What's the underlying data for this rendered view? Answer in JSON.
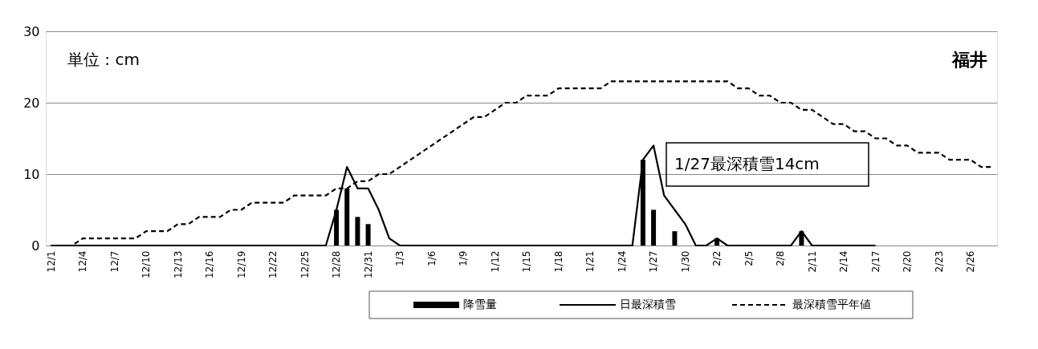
{
  "chart_data": {
    "type": "bar",
    "title": "福井",
    "annotations": [
      "単位 : cm",
      "1/27最深積雪14cm"
    ],
    "categories": [
      "12/1",
      null,
      null,
      "12/4",
      null,
      null,
      "12/7",
      null,
      null,
      "12/10",
      null,
      null,
      "12/13",
      null,
      null,
      "12/16",
      null,
      null,
      "12/19",
      null,
      null,
      "12/22",
      null,
      null,
      "12/25",
      null,
      null,
      "12/28",
      null,
      null,
      "12/31",
      null,
      null,
      "1/3",
      null,
      null,
      "1/6",
      null,
      null,
      "1/9",
      null,
      null,
      "1/12",
      null,
      null,
      "1/15",
      null,
      null,
      "1/18",
      null,
      null,
      "1/21",
      null,
      null,
      "1/24",
      null,
      null,
      "1/27",
      null,
      null,
      "1/30",
      null,
      null,
      "2/2",
      null,
      null,
      "2/5",
      null,
      null,
      "2/8",
      null,
      null,
      "2/11",
      null,
      null,
      "2/14",
      null,
      null,
      "2/17",
      null,
      null,
      "2/20",
      null,
      null,
      "2/23",
      null,
      null,
      "2/26",
      null,
      null
    ],
    "series": [
      {
        "name": "降雪量",
        "color": "#000000",
        "values": [
          0,
          0,
          0,
          0,
          0,
          0,
          0,
          0,
          0,
          0,
          0,
          0,
          0,
          0,
          0,
          0,
          0,
          0,
          0,
          0,
          0,
          0,
          0,
          0,
          0,
          0,
          0,
          5,
          8,
          4,
          3,
          0,
          0,
          0,
          0,
          0,
          0,
          0,
          0,
          0,
          0,
          0,
          0,
          0,
          0,
          0,
          0,
          0,
          0,
          0,
          0,
          0,
          0,
          0,
          0,
          0,
          12,
          5,
          0,
          2,
          0,
          0,
          0,
          1,
          0,
          0,
          0,
          0,
          0,
          0,
          0,
          2,
          0,
          0,
          0,
          0,
          0,
          0,
          0,
          0,
          0,
          0,
          0,
          0,
          0,
          0,
          0,
          0,
          0,
          0
        ]
      },
      {
        "name": "日最深積雪",
        "type": "line",
        "line_style": "solid",
        "color": "#000000",
        "values": [
          0,
          0,
          0,
          0,
          0,
          0,
          0,
          0,
          0,
          0,
          0,
          0,
          0,
          0,
          0,
          0,
          0,
          0,
          0,
          0,
          0,
          0,
          0,
          0,
          0,
          0,
          0,
          5,
          11,
          8,
          8,
          5,
          1,
          0,
          0,
          0,
          0,
          0,
          0,
          0,
          0,
          0,
          0,
          0,
          0,
          0,
          0,
          0,
          0,
          0,
          0,
          0,
          0,
          0,
          0,
          0,
          12,
          14,
          7,
          5,
          3,
          0,
          0,
          1,
          0,
          0,
          0,
          0,
          0,
          0,
          0,
          2,
          0,
          0,
          0,
          0,
          0,
          0,
          0,
          null,
          null,
          null,
          null,
          null,
          null,
          null,
          null,
          null,
          null,
          null
        ]
      },
      {
        "name": "最深積雪平年値",
        "type": "line",
        "line_style": "dashed",
        "color": "#000000",
        "values": [
          0,
          0,
          0,
          1,
          1,
          1,
          1,
          1,
          1,
          2,
          2,
          2,
          3,
          3,
          4,
          4,
          4,
          5,
          5,
          6,
          6,
          6,
          6,
          7,
          7,
          7,
          7,
          8,
          8,
          9,
          9,
          10,
          10,
          11,
          12,
          13,
          14,
          15,
          16,
          17,
          18,
          18,
          19,
          20,
          20,
          21,
          21,
          21,
          22,
          22,
          22,
          22,
          22,
          23,
          23,
          23,
          23,
          23,
          23,
          23,
          23,
          23,
          23,
          23,
          23,
          22,
          22,
          21,
          21,
          20,
          20,
          19,
          19,
          18,
          17,
          17,
          16,
          16,
          15,
          15,
          14,
          14,
          13,
          13,
          13,
          12,
          12,
          12,
          11,
          11
        ]
      }
    ],
    "ylim": [
      0,
      30
    ],
    "yticks": [
      0,
      10,
      20,
      30
    ],
    "grid": "y",
    "legend": "bottom"
  }
}
